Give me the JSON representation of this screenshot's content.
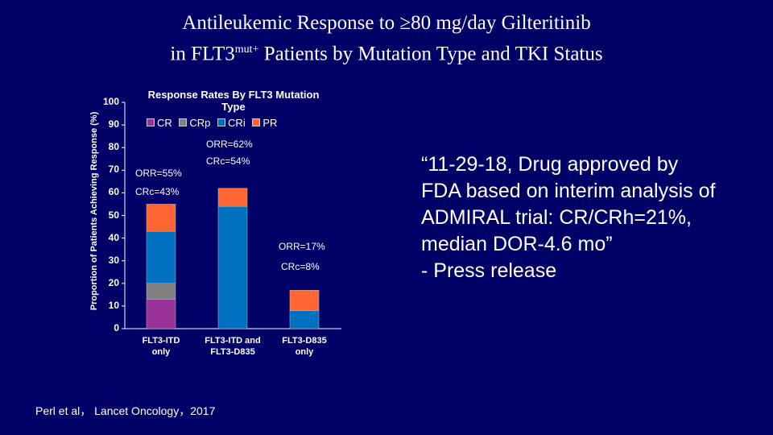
{
  "slide": {
    "title_line1": "Antileukemic Response to ≥80 mg/day Gilteritinib",
    "title_line2_pre": "in FLT3",
    "title_line2_sup": "mut+",
    "title_line2_post": " Patients by Mutation Type and TKI Status",
    "quote_lines": [
      "“11-29-18, Drug approved by",
      "FDA based on interim analysis of",
      "ADMIRAL trial: CR/CRh=21%,",
      "median DOR-4.6 mo”",
      "- Press release"
    ],
    "citation": "Perl et al， Lancet Oncology，2017"
  },
  "chart_data": {
    "type": "bar",
    "stacked": true,
    "title": "Response Rates By FLT3 Mutation Type",
    "ylabel": "Proportion of Patients Achieving Response (%)",
    "xlabel": "",
    "ylim": [
      0,
      100
    ],
    "yticks": [
      "0",
      "10",
      "20",
      "30",
      "40",
      "50",
      "60",
      "70",
      "80",
      "90",
      "100"
    ],
    "categories": [
      "FLT3-ITD only",
      "FLT3-ITD and FLT3-D835",
      "FLT3-D835 only"
    ],
    "category_lines": [
      [
        "FLT3-ITD",
        "only"
      ],
      [
        "FLT3-ITD and",
        "FLT3-D835"
      ],
      [
        "FLT3-D835",
        "only"
      ]
    ],
    "legend_position": "top",
    "series": [
      {
        "name": "CR",
        "color": "#993399",
        "values": [
          13,
          0,
          0
        ]
      },
      {
        "name": "CRp",
        "color": "#808080",
        "values": [
          7,
          0,
          0
        ]
      },
      {
        "name": "CRi",
        "color": "#0070C0",
        "values": [
          23,
          54,
          8
        ]
      },
      {
        "name": "PR",
        "color": "#FF6633",
        "values": [
          12,
          8,
          9
        ]
      }
    ],
    "annotations": [
      {
        "orr": "ORR=55%",
        "crc": "CRc=43%"
      },
      {
        "orr": "ORR=62%",
        "crc": "CRc=54%"
      },
      {
        "orr": "ORR=17%",
        "crc": "CRc=8%"
      }
    ]
  }
}
